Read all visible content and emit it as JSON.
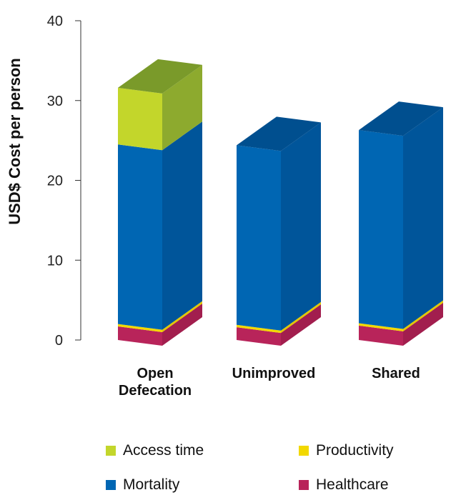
{
  "chart_data": {
    "type": "bar",
    "stacked": true,
    "style": "3d",
    "categories": [
      [
        "Open",
        "Defecation"
      ],
      [
        "Unimproved"
      ],
      [
        "Shared"
      ]
    ],
    "series": [
      {
        "name": "Healthcare",
        "values": [
          1.7,
          1.6,
          1.8
        ],
        "colors": {
          "front": "#B8245A",
          "side": "#A21E4E",
          "top": "#C93068"
        }
      },
      {
        "name": "Productivity",
        "values": [
          0.3,
          0.3,
          0.3
        ],
        "colors": {
          "front": "#F2D800",
          "side": "#E3C800",
          "top": "#F7E33A"
        }
      },
      {
        "name": "Mortality",
        "values": [
          22.5,
          22.5,
          24.2
        ],
        "colors": {
          "front": "#0066B3",
          "side": "#00559A",
          "top": "#004F8F"
        }
      },
      {
        "name": "Access time",
        "values": [
          7.1,
          0,
          0
        ],
        "colors": {
          "front": "#C3D62B",
          "side": "#8DAA2E",
          "top": "#7A9A2A"
        }
      }
    ],
    "ylabel": "USD$ Cost per person",
    "ylim": [
      0,
      40
    ],
    "yticks": [
      0,
      10,
      20,
      30,
      40
    ],
    "grid": false,
    "legend": {
      "placement": "bottom",
      "order": [
        "Access time",
        "Productivity",
        "Mortality",
        "Healthcare"
      ]
    }
  }
}
